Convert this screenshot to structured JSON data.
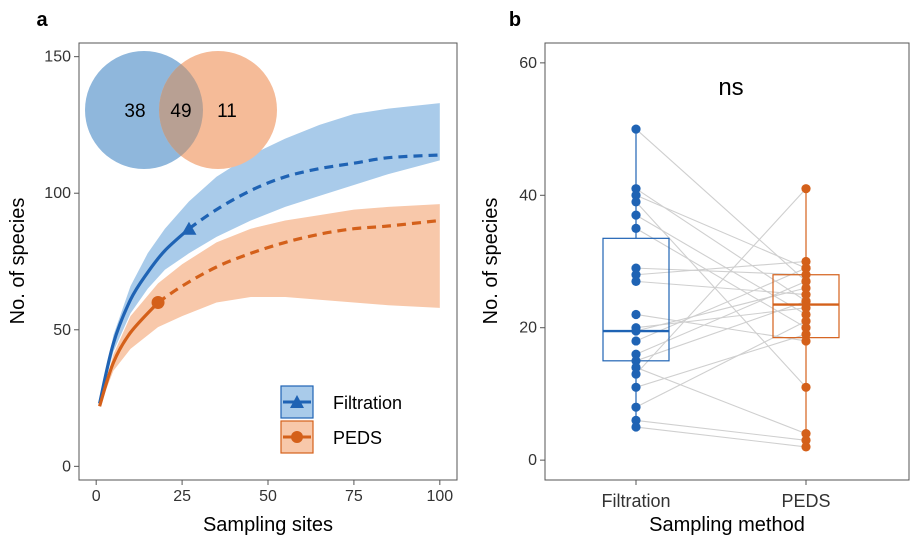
{
  "colors": {
    "filtration": "#1f63b4",
    "peds": "#d4601a",
    "filtration_band": "#a9cbea",
    "peds_band": "#f8c8aa",
    "overlap_band": "#a9ada9",
    "paired_line": "#cfcfcf",
    "venn_left": "#8fb7dc",
    "venn_right": "#f5bb98",
    "venn_overlap": "#b8a093"
  },
  "chart_data": [
    {
      "panel": "a",
      "type": "line",
      "xlabel": "Sampling sites",
      "ylabel": "No. of species",
      "xlim": [
        -5,
        105
      ],
      "ylim": [
        -5,
        155
      ],
      "xticks": [
        0,
        25,
        50,
        75,
        100
      ],
      "yticks": [
        0,
        50,
        100,
        150
      ],
      "grid": false,
      "legend": {
        "position": "bottom-right",
        "entries": [
          {
            "label": "Filtration",
            "marker": "triangle",
            "series": 0
          },
          {
            "label": "PEDS",
            "marker": "circle",
            "series": 1
          }
        ]
      },
      "series": [
        {
          "name": "Filtration",
          "observed_sites": 27,
          "x": [
            1,
            5,
            10,
            15,
            20,
            27,
            35,
            45,
            55,
            65,
            75,
            85,
            100
          ],
          "y": [
            23,
            45,
            61,
            71,
            79,
            87,
            94,
            101,
            106,
            109,
            111,
            113,
            114
          ],
          "upper": [
            23,
            48,
            66,
            78,
            87,
            97,
            106,
            114,
            120,
            125,
            129,
            131,
            133
          ],
          "lower": [
            23,
            42,
            56,
            65,
            72,
            78,
            84,
            90,
            95,
            99,
            103,
            107,
            112
          ]
        },
        {
          "name": "PEDS",
          "observed_sites": 18,
          "x": [
            1,
            5,
            10,
            18,
            25,
            35,
            45,
            55,
            65,
            75,
            85,
            100
          ],
          "y": [
            22,
            38,
            49,
            60,
            66,
            73,
            78,
            82,
            85,
            87,
            88,
            90
          ],
          "upper": [
            22,
            41,
            55,
            67,
            74,
            82,
            87,
            90,
            92,
            94,
            95,
            96
          ],
          "lower": [
            22,
            35,
            43,
            51,
            55,
            60,
            62,
            62,
            61,
            60,
            59,
            58
          ]
        }
      ],
      "venn": {
        "left_only": "38",
        "shared": "49",
        "right_only": "11"
      }
    },
    {
      "panel": "b",
      "type": "box",
      "xlabel": "Sampling method",
      "ylabel": "No. of species",
      "ylim": [
        -3,
        63
      ],
      "yticks": [
        0,
        20,
        40,
        60
      ],
      "categories": [
        "Filtration",
        "PEDS"
      ],
      "annotation": "ns",
      "boxes": [
        {
          "name": "Filtration",
          "whisker_low": 5,
          "q1": 15,
          "median": 19.5,
          "q3": 33.5,
          "whisker_high": 50
        },
        {
          "name": "PEDS",
          "whisker_low": 2,
          "q1": 18.5,
          "median": 23.5,
          "q3": 28,
          "whisker_high": 41
        }
      ],
      "pairs": [
        [
          50,
          27
        ],
        [
          41,
          24
        ],
        [
          40,
          29
        ],
        [
          39,
          11
        ],
        [
          37,
          22
        ],
        [
          35,
          20
        ],
        [
          29,
          28
        ],
        [
          28,
          30
        ],
        [
          27,
          25
        ],
        [
          22,
          18
        ],
        [
          20,
          23
        ],
        [
          19.5,
          26
        ],
        [
          18,
          29
        ],
        [
          16,
          27
        ],
        [
          15,
          24
        ],
        [
          13,
          41
        ],
        [
          11,
          19
        ],
        [
          8,
          21
        ],
        [
          6,
          3
        ],
        [
          5,
          2
        ],
        [
          14,
          4
        ]
      ]
    }
  ]
}
